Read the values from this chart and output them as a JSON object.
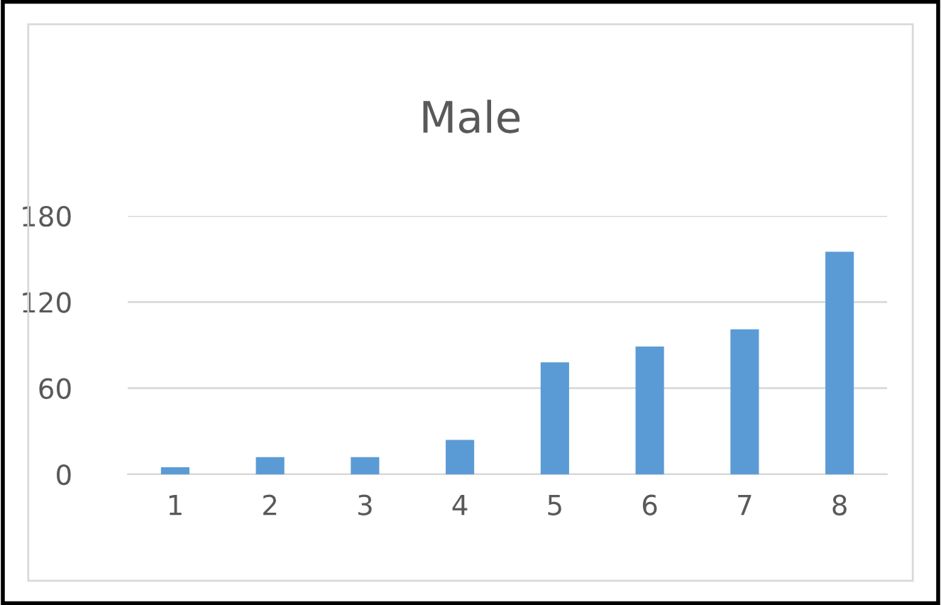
{
  "chart_data": {
    "type": "bar",
    "title": "Male",
    "categories": [
      "1",
      "2",
      "3",
      "4",
      "5",
      "6",
      "7",
      "8"
    ],
    "values": [
      5,
      12,
      12,
      24,
      78,
      89,
      101,
      155
    ],
    "color": "#5b9bd5",
    "ylim": [
      0,
      180
    ],
    "yticks": [
      0,
      60,
      120,
      180
    ],
    "grid": "y"
  }
}
